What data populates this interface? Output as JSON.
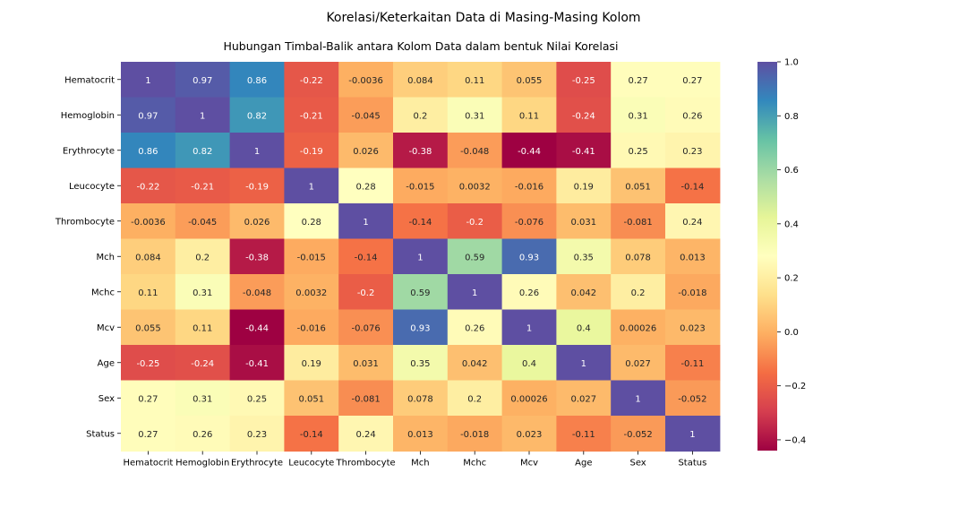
{
  "chart_data": {
    "type": "heatmap",
    "title": "Korelasi/Keterkaitan Data di Masing-Masing Kolom",
    "subtitle": "Hubungan Timbal-Balik antara Kolom Data dalam bentuk Nilai Korelasi",
    "rows": [
      "Hematocrit",
      "Hemoglobin",
      "Erythrocyte",
      "Leucocyte",
      "Thrombocyte",
      "Mch",
      "Mchc",
      "Mcv",
      "Age",
      "Sex",
      "Status"
    ],
    "columns": [
      "Hematocrit",
      "Hemoglobin",
      "Erythrocyte",
      "Leucocyte",
      "Thrombocyte",
      "Mch",
      "Mchc",
      "Mcv",
      "Age",
      "Sex",
      "Status"
    ],
    "values": [
      [
        "1",
        "0.97",
        "0.86",
        "-0.22",
        "-0.0036",
        "0.084",
        "0.11",
        "0.055",
        "-0.25",
        "0.27",
        "0.27"
      ],
      [
        "0.97",
        "1",
        "0.82",
        "-0.21",
        "-0.045",
        "0.2",
        "0.31",
        "0.11",
        "-0.24",
        "0.31",
        "0.26"
      ],
      [
        "0.86",
        "0.82",
        "1",
        "-0.19",
        "0.026",
        "-0.38",
        "-0.048",
        "-0.44",
        "-0.41",
        "0.25",
        "0.23"
      ],
      [
        "-0.22",
        "-0.21",
        "-0.19",
        "1",
        "0.28",
        "-0.015",
        "0.0032",
        "-0.016",
        "0.19",
        "0.051",
        "-0.14"
      ],
      [
        "-0.0036",
        "-0.045",
        "0.026",
        "0.28",
        "1",
        "-0.14",
        "-0.2",
        "-0.076",
        "0.031",
        "-0.081",
        "0.24"
      ],
      [
        "0.084",
        "0.2",
        "-0.38",
        "-0.015",
        "-0.14",
        "1",
        "0.59",
        "0.93",
        "0.35",
        "0.078",
        "0.013"
      ],
      [
        "0.11",
        "0.31",
        "-0.048",
        "0.0032",
        "-0.2",
        "0.59",
        "1",
        "0.26",
        "0.042",
        "0.2",
        "-0.018"
      ],
      [
        "0.055",
        "0.11",
        "-0.44",
        "-0.016",
        "-0.076",
        "0.93",
        "0.26",
        "1",
        "0.4",
        "0.00026",
        "0.023"
      ],
      [
        "-0.25",
        "-0.24",
        "-0.41",
        "0.19",
        "0.031",
        "0.35",
        "0.042",
        "0.4",
        "1",
        "0.027",
        "-0.11"
      ],
      [
        "0.27",
        "0.31",
        "0.25",
        "0.051",
        "-0.081",
        "0.078",
        "0.2",
        "0.00026",
        "0.027",
        "1",
        "-0.052"
      ],
      [
        "0.27",
        "0.26",
        "0.23",
        "-0.14",
        "0.24",
        "0.013",
        "-0.018",
        "0.023",
        "-0.11",
        "-0.052",
        "1"
      ]
    ],
    "colormap": "Spectral",
    "vmin": -0.44,
    "vmax": 1.0,
    "colorbar": {
      "ticks": [
        1.0,
        0.8,
        0.6,
        0.4,
        0.2,
        0.0,
        -0.2,
        -0.4
      ],
      "tick_labels": [
        "1.0",
        "0.8",
        "0.6",
        "0.4",
        "0.2",
        "0.0",
        "−0.2",
        "−0.4"
      ],
      "placement": "right"
    },
    "annotations": "on",
    "grid": "off"
  }
}
